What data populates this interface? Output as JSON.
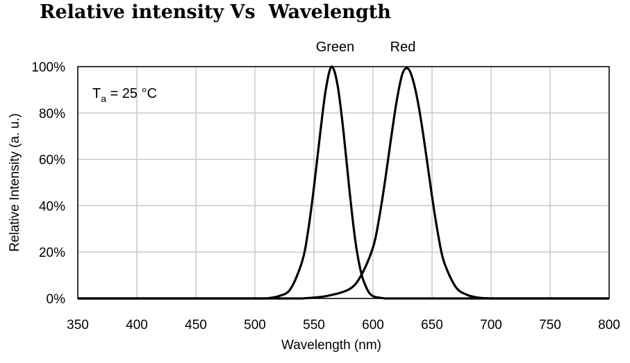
{
  "chart_data": {
    "type": "line",
    "title": "Relative intensity Vs  Wavelength",
    "xlabel": "Wavelength (nm)",
    "ylabel": "Relative Intensity (a. u.)",
    "xlim": [
      350,
      800
    ],
    "ylim": [
      0,
      100
    ],
    "x_ticks": [
      350,
      400,
      450,
      500,
      550,
      600,
      650,
      700,
      750,
      800
    ],
    "x_tick_labels": [
      "350",
      "400",
      "450",
      "500",
      "550",
      "600",
      "650",
      "700",
      "750",
      "800"
    ],
    "y_ticks": [
      0,
      20,
      40,
      60,
      80,
      100
    ],
    "y_tick_labels": [
      "0%",
      "20%",
      "40%",
      "60%",
      "80%",
      "100%"
    ],
    "grid": true,
    "annotation": {
      "main": "T",
      "sub": "a",
      "rest": " = 25 °C"
    },
    "series": [
      {
        "name": "Green",
        "x": [
          510,
          520,
          530,
          540,
          545,
          550,
          555,
          560,
          565,
          570,
          575,
          580,
          585,
          590,
          595,
          600,
          610
        ],
        "y": [
          0,
          1,
          4,
          16,
          29,
          48,
          70,
          90,
          100,
          92,
          72,
          47,
          25,
          11,
          4,
          1,
          0
        ]
      },
      {
        "name": "Red",
        "x": [
          540,
          560,
          580,
          590,
          600,
          605,
          610,
          615,
          620,
          625,
          630,
          635,
          640,
          645,
          650,
          655,
          660,
          670,
          680,
          690,
          700
        ],
        "y": [
          0,
          1,
          4,
          10,
          22,
          34,
          50,
          68,
          85,
          97,
          99,
          92,
          79,
          62,
          44,
          28,
          16,
          5,
          1.5,
          0.3,
          0
        ]
      }
    ]
  }
}
